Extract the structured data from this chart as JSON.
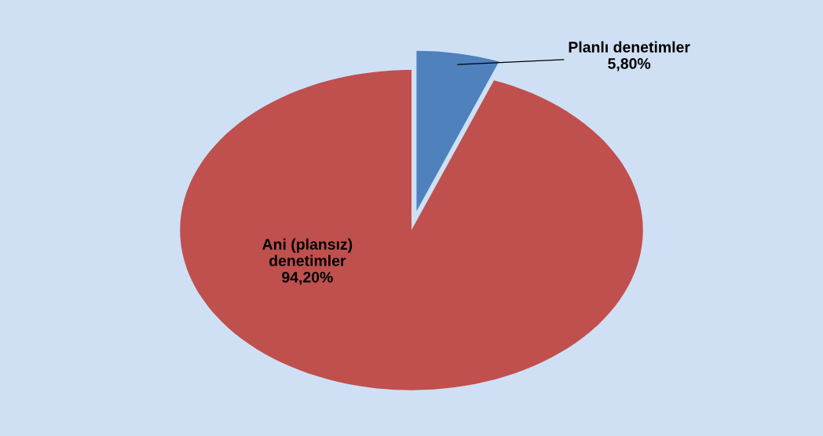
{
  "chart_data": {
    "type": "pie",
    "categories": [
      "Planlı denetimler",
      "Ani (plansız) denetimler"
    ],
    "values": [
      5.8,
      94.2
    ],
    "colors": [
      "#4f81bd",
      "#c0504d"
    ],
    "value_labels": [
      "5,80%",
      "94,20%"
    ]
  }
}
